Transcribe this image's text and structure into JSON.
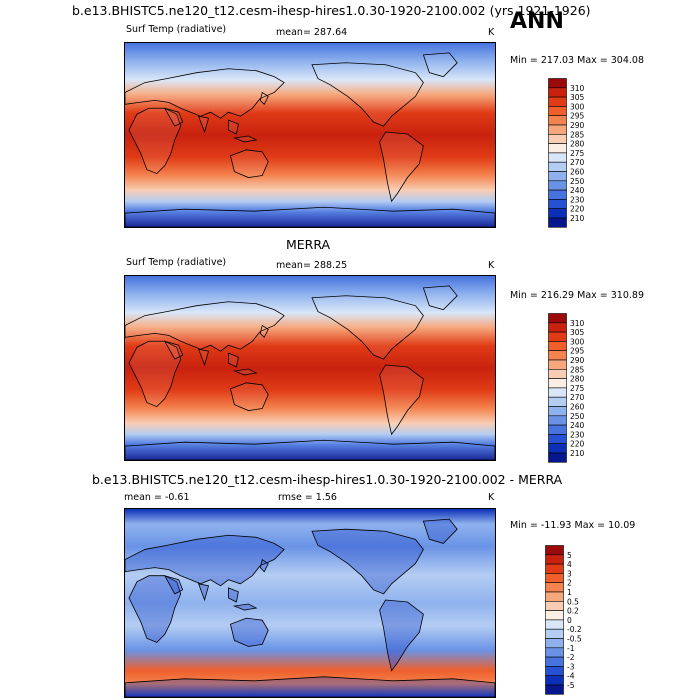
{
  "chart_data": [
    {
      "type": "heatmap",
      "title": "b.e13.BHISTC5.ne120_t12.cesm-ihesp-hires1.0.30-1920-2100.002 (yrs 1921-1926)",
      "season": "ANN",
      "left_label": "Surf Temp (radiative)",
      "center_label": "mean= 287.64",
      "units": "K",
      "minmax": "Min = 217.03 Max = 304.08",
      "colorbar_levels": [
        "310",
        "305",
        "300",
        "295",
        "290",
        "285",
        "280",
        "275",
        "270",
        "260",
        "250",
        "240",
        "230",
        "220",
        "210"
      ],
      "colors": [
        "#9b0a0a",
        "#c8220f",
        "#e03b16",
        "#ee5f2c",
        "#f4844f",
        "#f6a77c",
        "#f8cdb4",
        "#fbeee4",
        "#d8e6f8",
        "#b4cdf3",
        "#8fb2ee",
        "#6a93e6",
        "#4773de",
        "#2651d3",
        "#0c2fb8",
        "#06168e"
      ]
    },
    {
      "type": "heatmap",
      "title": "MERRA",
      "left_label": "Surf Temp (radiative)",
      "center_label": "mean= 288.25",
      "units": "K",
      "minmax": "Min = 216.29 Max = 310.89",
      "colorbar_levels": [
        "310",
        "305",
        "300",
        "295",
        "290",
        "285",
        "280",
        "275",
        "270",
        "260",
        "250",
        "240",
        "230",
        "220",
        "210"
      ]
    },
    {
      "type": "heatmap",
      "title": "b.e13.BHISTC5.ne120_t12.cesm-ihesp-hires1.0.30-1920-2100.002 - MERRA",
      "left_label": "mean =  -0.61",
      "center_label": "rmse =   1.56",
      "units": "K",
      "minmax": "Min = -11.93 Max =  10.09",
      "colorbar_levels": [
        "5",
        "4",
        "3",
        "2",
        "1",
        "0.5",
        "0.2",
        "0",
        "-0.2",
        "-0.5",
        "-1",
        "-2",
        "-3",
        "-4",
        "-5"
      ],
      "colors": [
        "#9b0a0a",
        "#c8220f",
        "#e03b16",
        "#ee5f2c",
        "#f4844f",
        "#f6a77c",
        "#f8cdb4",
        "#fbeee4",
        "#d8e6f8",
        "#b4cdf3",
        "#8fb2ee",
        "#6a93e6",
        "#4773de",
        "#2651d3",
        "#0c2fb8",
        "#06168e"
      ]
    }
  ]
}
